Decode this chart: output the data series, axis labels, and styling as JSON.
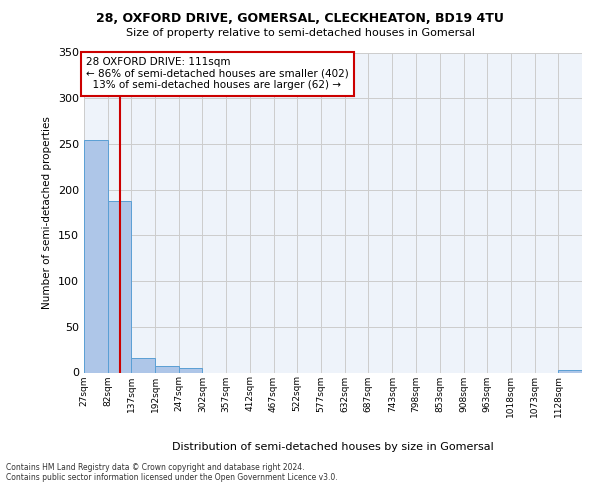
{
  "title": "28, OXFORD DRIVE, GOMERSAL, CLECKHEATON, BD19 4TU",
  "subtitle": "Size of property relative to semi-detached houses in Gomersal",
  "xlabel": "Distribution of semi-detached houses by size in Gomersal",
  "ylabel": "Number of semi-detached properties",
  "property_size": 111,
  "property_label": "28 OXFORD DRIVE: 111sqm",
  "pct_smaller": 86,
  "count_smaller": 402,
  "pct_larger": 13,
  "count_larger": 62,
  "bin_labels": [
    "27sqm",
    "82sqm",
    "137sqm",
    "192sqm",
    "247sqm",
    "302sqm",
    "357sqm",
    "412sqm",
    "467sqm",
    "522sqm",
    "577sqm",
    "632sqm",
    "687sqm",
    "743sqm",
    "798sqm",
    "853sqm",
    "908sqm",
    "963sqm",
    "1018sqm",
    "1073sqm",
    "1128sqm"
  ],
  "bin_edges": [
    27,
    82,
    137,
    192,
    247,
    302,
    357,
    412,
    467,
    522,
    577,
    632,
    687,
    743,
    798,
    853,
    908,
    963,
    1018,
    1073,
    1128
  ],
  "bar_values": [
    254,
    188,
    16,
    7,
    5,
    0,
    0,
    0,
    0,
    0,
    0,
    0,
    0,
    0,
    0,
    0,
    0,
    0,
    0,
    0,
    3
  ],
  "bar_color": "#aec6e8",
  "bar_edge_color": "#5a9fd4",
  "grid_color": "#cccccc",
  "vline_color": "#cc0000",
  "vline_x": 111,
  "box_color": "#cc0000",
  "ylim": [
    0,
    350
  ],
  "yticks": [
    0,
    50,
    100,
    150,
    200,
    250,
    300,
    350
  ],
  "bg_color": "#eef3fa",
  "footer_line1": "Contains HM Land Registry data © Crown copyright and database right 2024.",
  "footer_line2": "Contains public sector information licensed under the Open Government Licence v3.0."
}
